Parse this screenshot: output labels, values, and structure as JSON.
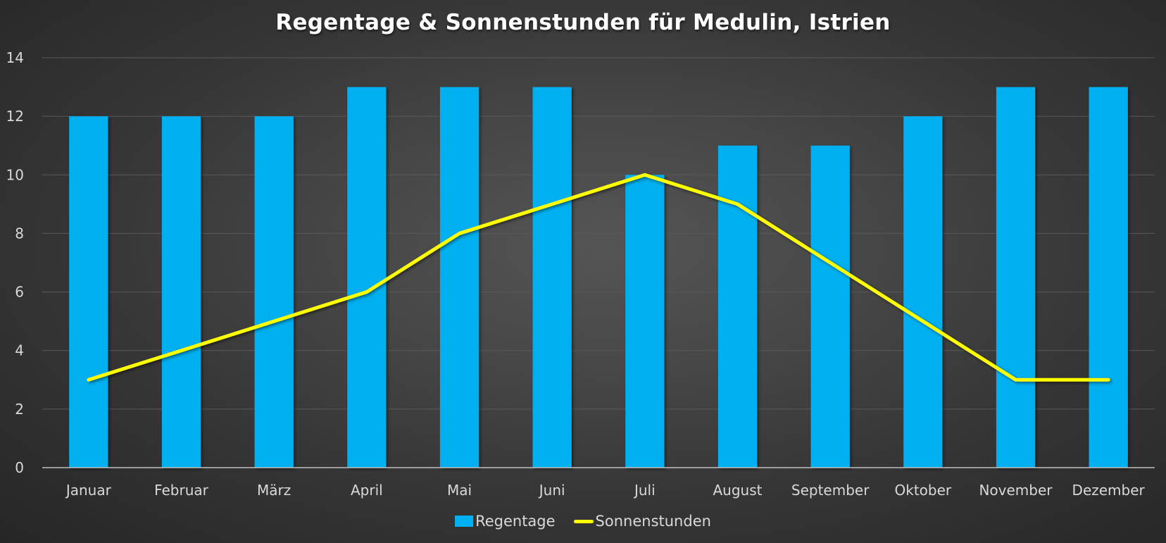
{
  "chart_data": {
    "type": "bar",
    "title": "Regentage & Sonnenstunden für Medulin, Istrien",
    "xlabel": "",
    "ylabel": "",
    "ylim": [
      0,
      14
    ],
    "yticks": [
      0,
      2,
      4,
      6,
      8,
      10,
      12,
      14
    ],
    "grid": true,
    "legend_position": "bottom",
    "categories": [
      "Januar",
      "Februar",
      "März",
      "April",
      "Mai",
      "Juni",
      "Juli",
      "August",
      "September",
      "Oktober",
      "November",
      "Dezember"
    ],
    "series": [
      {
        "name": "Regentage",
        "type": "bar",
        "color": "#00b0f0",
        "values": [
          12,
          12,
          12,
          13,
          13,
          13,
          10,
          11,
          11,
          12,
          13,
          13
        ]
      },
      {
        "name": "Sonnenstunden",
        "type": "line",
        "color": "#ffff00",
        "values": [
          3,
          4,
          5,
          6,
          8,
          9,
          10,
          9,
          7,
          5,
          3,
          3
        ]
      }
    ]
  }
}
